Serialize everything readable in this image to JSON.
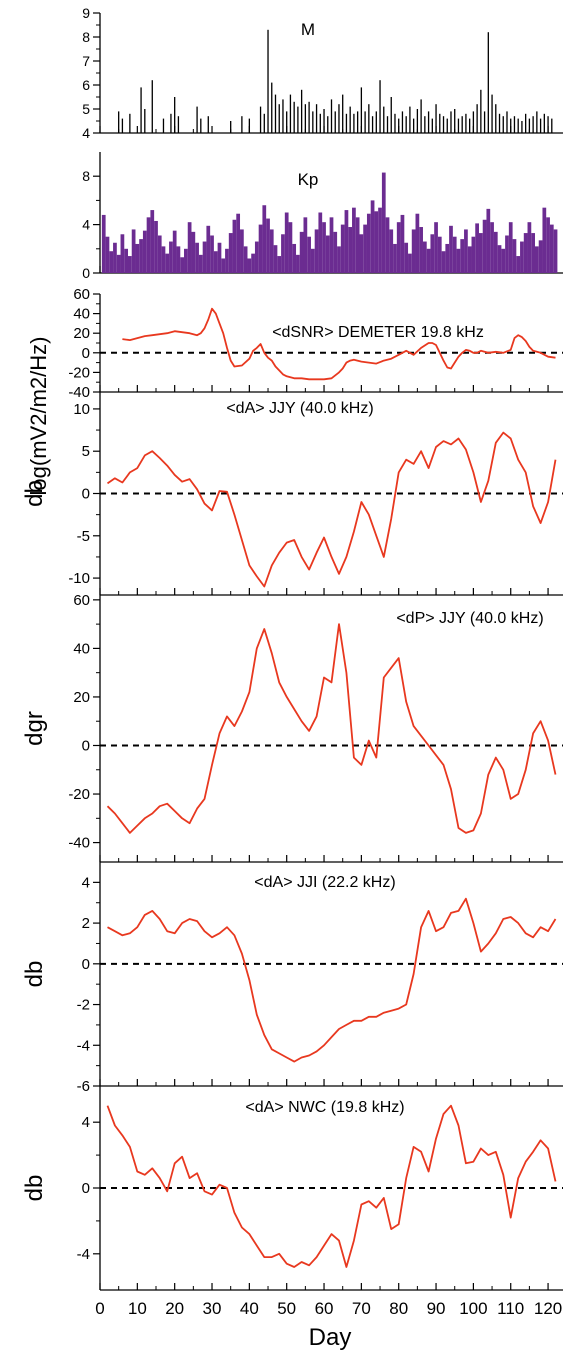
{
  "chart_data": [
    {
      "type": "bar",
      "title": "M",
      "ylabel": "",
      "ylim": [
        4,
        9
      ],
      "yticks": [
        4,
        5,
        6,
        7,
        8,
        9
      ],
      "color": "#000000",
      "x": [
        5,
        6,
        8,
        11,
        12,
        14,
        17,
        19,
        20,
        21,
        26,
        27,
        29,
        35,
        38,
        40,
        43,
        44,
        45,
        46,
        47,
        48,
        49,
        50,
        51,
        52,
        53,
        54,
        55,
        56,
        57,
        58,
        59,
        60,
        61,
        62,
        63,
        64,
        65,
        66,
        67,
        68,
        69,
        70,
        71,
        72,
        73,
        74,
        75,
        76,
        77,
        78,
        79,
        80,
        81,
        82,
        83,
        84,
        85,
        86,
        87,
        88,
        89,
        90,
        91,
        92,
        93,
        94,
        95,
        96,
        97,
        98,
        99,
        100,
        101,
        102,
        103,
        104,
        105,
        106,
        107,
        108,
        109,
        110,
        111,
        112,
        113,
        114,
        115,
        116,
        117,
        118,
        119,
        120,
        121
      ],
      "values": [
        4.9,
        4.6,
        4.8,
        5.9,
        5.0,
        6.2,
        4.6,
        4.8,
        5.5,
        4.7,
        5.1,
        4.6,
        4.7,
        4.5,
        4.7,
        4.6,
        5.1,
        4.8,
        8.3,
        6.1,
        5.6,
        5.2,
        5.4,
        4.9,
        5.6,
        5.3,
        5.1,
        5.8,
        5.2,
        5.3,
        4.9,
        5.2,
        4.8,
        5.0,
        4.7,
        5.4,
        4.9,
        5.2,
        5.6,
        4.8,
        5.1,
        4.8,
        4.9,
        5.9,
        4.9,
        5.2,
        4.7,
        4.9,
        6.2,
        5.1,
        4.7,
        5.5,
        4.8,
        4.6,
        4.9,
        4.7,
        5.1,
        4.6,
        5.0,
        5.4,
        4.7,
        4.9,
        4.6,
        5.2,
        4.8,
        4.7,
        4.6,
        4.9,
        5.0,
        4.6,
        4.7,
        4.8,
        4.6,
        4.9,
        5.2,
        5.8,
        4.9,
        8.2,
        5.6,
        5.2,
        4.8,
        4.7,
        4.9,
        4.6,
        4.7,
        4.6,
        4.5,
        4.8,
        4.6,
        4.7,
        4.9,
        4.6,
        4.8,
        4.7,
        4.6
      ]
    },
    {
      "type": "bar",
      "title": "Kp",
      "ylabel": "",
      "ylim": [
        0,
        10
      ],
      "yticks": [
        0,
        4,
        8
      ],
      "color": "#6b2c91",
      "x": [
        1,
        2,
        3,
        4,
        5,
        6,
        7,
        8,
        9,
        10,
        11,
        12,
        13,
        14,
        15,
        16,
        17,
        18,
        19,
        20,
        21,
        22,
        23,
        24,
        25,
        26,
        27,
        28,
        29,
        30,
        31,
        32,
        33,
        34,
        35,
        36,
        37,
        38,
        39,
        40,
        41,
        42,
        43,
        44,
        45,
        46,
        47,
        48,
        49,
        50,
        51,
        52,
        53,
        54,
        55,
        56,
        57,
        58,
        59,
        60,
        61,
        62,
        63,
        64,
        65,
        66,
        67,
        68,
        69,
        70,
        71,
        72,
        73,
        74,
        75,
        76,
        77,
        78,
        79,
        80,
        81,
        82,
        83,
        84,
        85,
        86,
        87,
        88,
        89,
        90,
        91,
        92,
        93,
        94,
        95,
        96,
        97,
        98,
        99,
        100,
        101,
        102,
        103,
        104,
        105,
        106,
        107,
        108,
        109,
        110,
        111,
        112,
        113,
        114,
        115,
        116,
        117,
        118,
        119,
        120,
        121,
        122
      ],
      "values": [
        4.8,
        3.0,
        1.8,
        2.5,
        1.5,
        3.2,
        2.0,
        1.4,
        3.6,
        2.4,
        2.8,
        3.5,
        4.6,
        5.2,
        4.3,
        3.1,
        2.2,
        1.6,
        2.6,
        3.5,
        2.2,
        1.3,
        2.0,
        4.2,
        3.4,
        2.5,
        1.5,
        2.6,
        3.9,
        3.1,
        1.8,
        2.5,
        1.2,
        2.0,
        3.3,
        4.4,
        4.9,
        3.6,
        2.2,
        1.2,
        1.6,
        2.6,
        4.0,
        5.6,
        4.5,
        3.6,
        2.3,
        1.4,
        3.2,
        5.0,
        4.2,
        2.4,
        1.5,
        3.4,
        4.6,
        3.0,
        2.0,
        3.6,
        5.0,
        4.2,
        3.1,
        4.6,
        3.4,
        2.2,
        4.0,
        5.2,
        3.8,
        5.4,
        4.6,
        3.2,
        4.0,
        4.9,
        6.0,
        5.1,
        5.4,
        8.3,
        4.6,
        3.6,
        2.4,
        4.2,
        4.8,
        2.5,
        1.6,
        3.6,
        4.9,
        3.8,
        2.6,
        2.0,
        3.2,
        4.2,
        3.0,
        1.8,
        2.4,
        3.9,
        3.0,
        2.0,
        2.8,
        3.6,
        2.2,
        3.0,
        4.1,
        3.3,
        4.4,
        5.3,
        4.2,
        3.4,
        2.3,
        2.0,
        3.1,
        4.2,
        2.8,
        1.4,
        2.6,
        3.3,
        4.2,
        3.3,
        2.2,
        2.7,
        5.4,
        4.6,
        4.0,
        3.6
      ]
    },
    {
      "type": "line",
      "title": "<dSNR> DEMETER 19.8 kHz",
      "ylabel": "log(mV2/m2/Hz)",
      "ylim": [
        -40,
        60
      ],
      "yticks": [
        -40,
        -20,
        0,
        20,
        40,
        60
      ],
      "color": "#e8381f",
      "x": [
        6,
        8,
        10,
        12,
        14,
        16,
        18,
        20,
        22,
        24,
        25,
        26,
        27,
        28,
        29,
        30,
        31,
        32,
        33,
        34,
        35,
        36,
        38,
        40,
        41,
        42,
        43,
        44,
        45,
        46,
        47,
        48,
        49,
        50,
        52,
        54,
        56,
        58,
        60,
        62,
        64,
        65,
        66,
        67,
        68,
        70,
        72,
        74,
        76,
        78,
        80,
        82,
        84,
        86,
        88,
        89,
        90,
        91,
        92,
        93,
        94,
        95,
        96,
        97,
        98,
        99,
        100,
        101,
        102,
        104,
        106,
        108,
        110,
        111,
        112,
        113,
        114,
        115,
        116,
        118,
        120,
        122
      ],
      "values": [
        14,
        13,
        15,
        17,
        18,
        19,
        20,
        22,
        21,
        20,
        19,
        18,
        20,
        25,
        34,
        45,
        40,
        30,
        20,
        5,
        -8,
        -14,
        -13,
        -6,
        2,
        5,
        9,
        0,
        -5,
        -8,
        -14,
        -18,
        -22,
        -24,
        -26,
        -26,
        -27,
        -27,
        -27,
        -26,
        -20,
        -16,
        -10,
        -8,
        -7,
        -9,
        -10,
        -11,
        -8,
        -6,
        -2,
        2,
        -2,
        5,
        10,
        10,
        8,
        0,
        -8,
        -15,
        -16,
        -10,
        -4,
        0,
        3,
        2,
        0,
        0,
        2,
        0,
        1,
        0,
        3,
        15,
        18,
        16,
        12,
        6,
        2,
        0,
        -4,
        -5
      ]
    },
    {
      "type": "line",
      "title": "<dA> JJY (40.0 kHz)",
      "ylabel": "db",
      "ylim": [
        -12,
        12
      ],
      "yticks": [
        -10,
        -5,
        0,
        5,
        10
      ],
      "color": "#e8381f",
      "x": [
        2,
        4,
        6,
        8,
        10,
        12,
        14,
        16,
        18,
        20,
        22,
        24,
        26,
        28,
        30,
        32,
        34,
        36,
        38,
        40,
        42,
        44,
        46,
        48,
        50,
        52,
        54,
        56,
        58,
        60,
        62,
        64,
        66,
        68,
        70,
        72,
        74,
        76,
        78,
        80,
        82,
        84,
        86,
        88,
        90,
        92,
        94,
        96,
        98,
        100,
        102,
        104,
        106,
        108,
        110,
        112,
        114,
        116,
        118,
        120,
        122
      ],
      "values": [
        1.2,
        1.8,
        1.3,
        2.5,
        3.0,
        4.5,
        5.0,
        4.2,
        3.3,
        2.2,
        1.4,
        1.7,
        0.5,
        -1.2,
        -2.0,
        0.3,
        0.2,
        -2.5,
        -5.5,
        -8.5,
        -9.8,
        -11.0,
        -8.5,
        -7.0,
        -5.8,
        -5.5,
        -7.5,
        -9.0,
        -7.0,
        -5.2,
        -7.5,
        -9.5,
        -7.5,
        -4.5,
        -1.0,
        -2.5,
        -5.0,
        -7.5,
        -3.0,
        2.5,
        4.0,
        3.5,
        5.0,
        3.0,
        5.5,
        6.2,
        5.8,
        6.5,
        5.2,
        2.5,
        -1.0,
        1.5,
        6.0,
        7.2,
        6.5,
        4.0,
        2.5,
        -1.5,
        -3.5,
        -1.0,
        4.0
      ]
    },
    {
      "type": "line",
      "title": "<dP> JJY (40.0  kHz)",
      "ylabel": "dgr",
      "ylim": [
        -48,
        62
      ],
      "yticks": [
        -40,
        -20,
        0,
        20,
        40,
        60
      ],
      "color": "#e8381f",
      "x": [
        2,
        4,
        6,
        8,
        10,
        12,
        14,
        16,
        18,
        20,
        22,
        24,
        26,
        28,
        30,
        32,
        34,
        36,
        38,
        40,
        42,
        44,
        46,
        48,
        50,
        52,
        54,
        56,
        58,
        60,
        62,
        64,
        66,
        68,
        70,
        72,
        74,
        76,
        78,
        80,
        82,
        84,
        86,
        88,
        90,
        92,
        94,
        96,
        98,
        100,
        102,
        104,
        106,
        108,
        110,
        112,
        114,
        116,
        118,
        120,
        122
      ],
      "values": [
        -25,
        -28,
        -32,
        -36,
        -33,
        -30,
        -28,
        -25,
        -24,
        -27,
        -30,
        -32,
        -26,
        -22,
        -8,
        5,
        12,
        8,
        14,
        22,
        40,
        48,
        38,
        26,
        20,
        15,
        10,
        6,
        12,
        28,
        26,
        50,
        30,
        -5,
        -8,
        2,
        -5,
        28,
        32,
        36,
        18,
        8,
        4,
        0,
        -4,
        -8,
        -18,
        -34,
        -36,
        -35,
        -28,
        -12,
        -5,
        -10,
        -22,
        -20,
        -10,
        5,
        10,
        2,
        -12
      ]
    },
    {
      "type": "line",
      "title": "<dA> JJI (22.2 kHz)",
      "ylabel": "db",
      "ylim": [
        -6,
        5
      ],
      "yticks": [
        -6,
        -4,
        -2,
        0,
        2,
        4
      ],
      "color": "#e8381f",
      "x": [
        2,
        4,
        6,
        8,
        10,
        12,
        14,
        16,
        18,
        20,
        22,
        24,
        26,
        28,
        30,
        32,
        34,
        36,
        38,
        40,
        42,
        44,
        46,
        48,
        50,
        52,
        54,
        56,
        58,
        60,
        62,
        64,
        66,
        68,
        70,
        72,
        74,
        76,
        78,
        80,
        82,
        84,
        86,
        88,
        90,
        92,
        94,
        96,
        98,
        100,
        102,
        104,
        106,
        108,
        110,
        112,
        114,
        116,
        118,
        120,
        122
      ],
      "values": [
        1.8,
        1.6,
        1.4,
        1.5,
        1.8,
        2.4,
        2.6,
        2.2,
        1.6,
        1.5,
        2.0,
        2.2,
        2.1,
        1.6,
        1.3,
        1.5,
        1.8,
        1.4,
        0.5,
        -0.8,
        -2.5,
        -3.5,
        -4.2,
        -4.4,
        -4.6,
        -4.8,
        -4.6,
        -4.5,
        -4.3,
        -4.0,
        -3.6,
        -3.2,
        -3.0,
        -2.8,
        -2.8,
        -2.6,
        -2.6,
        -2.4,
        -2.3,
        -2.2,
        -2.0,
        -0.5,
        1.8,
        2.6,
        1.6,
        1.8,
        2.5,
        2.6,
        3.2,
        2.0,
        0.6,
        1.0,
        1.5,
        2.2,
        2.3,
        2.0,
        1.5,
        1.3,
        1.8,
        1.6,
        2.2
      ]
    },
    {
      "type": "line",
      "title": "<dA> NWC (19.8 kHz)",
      "ylabel": "db",
      "ylim": [
        -6.2,
        6.2
      ],
      "yticks": [
        -4,
        0,
        4
      ],
      "xlabel": "Day",
      "xlim": [
        0,
        124
      ],
      "xticks": [
        0,
        10,
        20,
        30,
        40,
        50,
        60,
        70,
        80,
        90,
        100,
        110,
        120
      ],
      "color": "#e8381f",
      "x": [
        2,
        4,
        6,
        8,
        10,
        12,
        14,
        16,
        18,
        20,
        22,
        24,
        26,
        28,
        30,
        32,
        34,
        36,
        38,
        40,
        42,
        44,
        46,
        48,
        50,
        52,
        54,
        56,
        58,
        60,
        62,
        64,
        66,
        68,
        70,
        72,
        74,
        76,
        78,
        80,
        82,
        84,
        86,
        88,
        90,
        92,
        94,
        96,
        98,
        100,
        102,
        104,
        106,
        108,
        110,
        112,
        114,
        116,
        118,
        120,
        122
      ],
      "values": [
        5.0,
        3.8,
        3.2,
        2.5,
        1.0,
        0.8,
        1.2,
        0.6,
        -0.2,
        1.5,
        1.9,
        0.6,
        0.9,
        -0.2,
        -0.4,
        0.2,
        0.0,
        -1.5,
        -2.4,
        -2.8,
        -3.5,
        -4.2,
        -4.2,
        -4.0,
        -4.6,
        -4.8,
        -4.5,
        -4.7,
        -4.2,
        -3.5,
        -2.8,
        -3.2,
        -4.8,
        -3.2,
        -1.0,
        -0.8,
        -1.2,
        -0.6,
        -2.5,
        -2.2,
        0.6,
        2.5,
        2.2,
        1.0,
        3.0,
        4.5,
        5.0,
        3.8,
        1.5,
        1.6,
        2.4,
        2.0,
        2.2,
        0.8,
        -1.8,
        0.6,
        1.6,
        2.2,
        2.9,
        2.4,
        0.4
      ]
    }
  ]
}
